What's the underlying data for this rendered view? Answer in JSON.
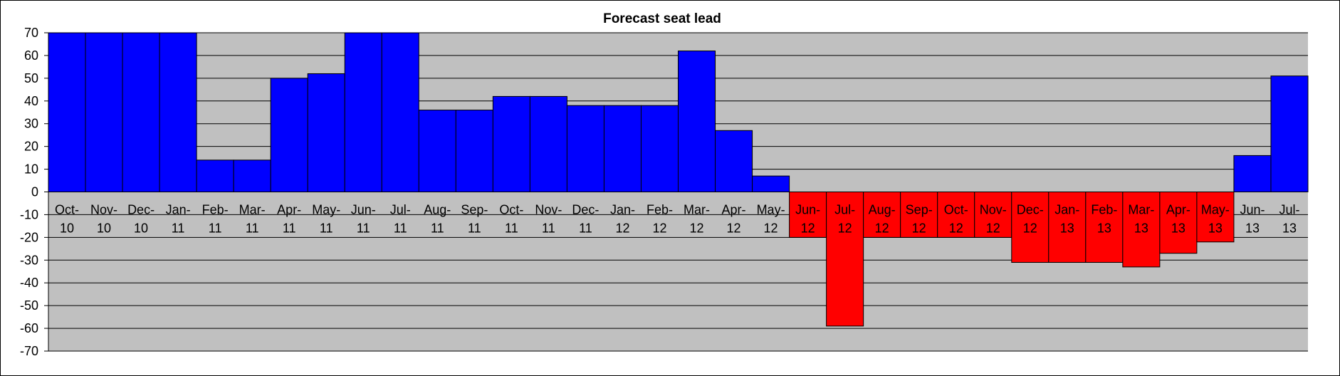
{
  "chart_data": {
    "type": "bar",
    "title": "Forecast seat lead",
    "xlabel": "",
    "ylabel": "",
    "ylim": [
      -70,
      70
    ],
    "ytick_step": 10,
    "grid": true,
    "plot_background": "#c0c0c0",
    "positive_color": "#0000ff",
    "negative_color": "#ff0000",
    "categories": [
      [
        "Oct-",
        "10"
      ],
      [
        "Nov-",
        "10"
      ],
      [
        "Dec-",
        "10"
      ],
      [
        "Jan-",
        "11"
      ],
      [
        "Feb-",
        "11"
      ],
      [
        "Mar-",
        "11"
      ],
      [
        "Apr-",
        "11"
      ],
      [
        "May-",
        "11"
      ],
      [
        "Jun-",
        "11"
      ],
      [
        "Jul-",
        "11"
      ],
      [
        "Aug-",
        "11"
      ],
      [
        "Sep-",
        "11"
      ],
      [
        "Oct-",
        "11"
      ],
      [
        "Nov-",
        "11"
      ],
      [
        "Dec-",
        "11"
      ],
      [
        "Jan-",
        "12"
      ],
      [
        "Feb-",
        "12"
      ],
      [
        "Mar-",
        "12"
      ],
      [
        "Apr-",
        "12"
      ],
      [
        "May-",
        "12"
      ],
      [
        "Jun-",
        "12"
      ],
      [
        "Jul-",
        "12"
      ],
      [
        "Aug-",
        "12"
      ],
      [
        "Sep-",
        "12"
      ],
      [
        "Oct-",
        "12"
      ],
      [
        "Nov-",
        "12"
      ],
      [
        "Dec-",
        "12"
      ],
      [
        "Jan-",
        "13"
      ],
      [
        "Feb-",
        "13"
      ],
      [
        "Mar-",
        "13"
      ],
      [
        "Apr-",
        "13"
      ],
      [
        "May-",
        "13"
      ],
      [
        "Jun-",
        "13"
      ],
      [
        "Jul-",
        "13"
      ]
    ],
    "values": [
      70,
      70,
      70,
      70,
      14,
      14,
      50,
      52,
      70,
      70,
      36,
      36,
      42,
      42,
      38,
      38,
      38,
      62,
      27,
      7,
      -20,
      -59,
      -20,
      -20,
      -20,
      -20,
      -31,
      -31,
      -31,
      -33,
      -27,
      -22,
      16,
      51
    ]
  }
}
